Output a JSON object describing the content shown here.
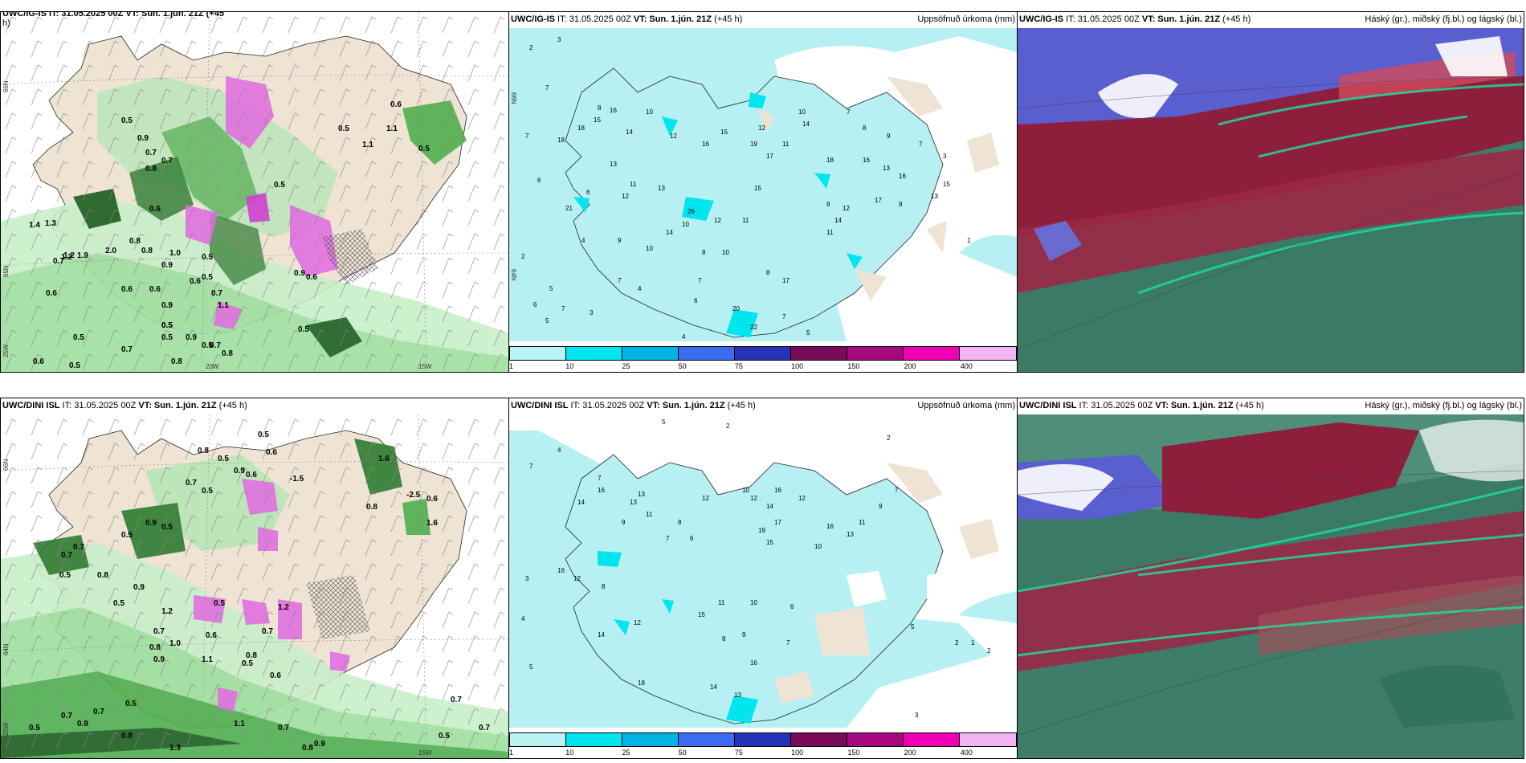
{
  "panels": {
    "top_left": {
      "title_partial": "UWC/IG-IS IT: 31.05.2025 00Z VT: Sun. 1.jún. 21Z (+45",
      "title_wrap": "h)"
    },
    "top_mid": {
      "model": "UWC/IG-IS",
      "it": " IT: 31.05.2025 00Z ",
      "vt_label": "VT: Sun. 1.jún. 21Z",
      "lead": " (+45 h)",
      "right": "Uppsöfnuð úrkoma (mm)"
    },
    "top_right": {
      "model": "UWC/IG-IS",
      "it": " IT: 31.05.2025 00Z ",
      "vt_label": "VT: Sun. 1.jún. 21Z",
      "lead": " (+45 h)",
      "right": "Háský (gr.), miðský (fj.bl.) og lágský (bl.)"
    },
    "bot_left": {
      "model": "UWC/DINI ISL",
      "it": " IT: 31.05.2025 00Z ",
      "vt_label": "VT: Sun. 1.jún. 21Z",
      "lead": " (+45 h)"
    },
    "bot_mid": {
      "model": "UWC/DINI ISL",
      "it": " IT: 31.05.2025 00Z ",
      "vt_label": "VT: Sun. 1.jún. 21Z",
      "lead": " (+45 h)",
      "right": "Uppsöfnuð úrkoma (mm)"
    },
    "bot_right": {
      "model": "UWC/DINI ISL",
      "it": " IT: 31.05.2025 00Z ",
      "vt_label": "VT: Sun. 1.jún. 21Z",
      "lead": " (+45 h)",
      "right": "Háský (gr.), miðský (fj.bl.) og lágský (bl.)"
    }
  },
  "coords": {
    "lat66": "66N",
    "lat64": "64N",
    "lat65": "65N",
    "lon20": "20W",
    "lon15": "15W",
    "lon25": "25W"
  },
  "colorbar": {
    "labels": [
      "1",
      "10",
      "25",
      "50",
      "75",
      "100",
      "150",
      "200",
      "400"
    ],
    "colors": [
      "#b8f4f4",
      "#00e5ee",
      "#00b4e6",
      "#3a6cf0",
      "#2632b8",
      "#7a0a5a",
      "#a8087e",
      "#f000b4",
      "#f2b4f2"
    ]
  },
  "precip_values": {
    "top_left": [
      "0.5",
      "0.9",
      "0.7",
      "0.6",
      "1.1",
      "0.5",
      "0.8",
      "0.5",
      "0.5",
      "1.1",
      "0.7",
      "0.6",
      "0.5",
      "0.8",
      "0.6",
      "0.5",
      "0.9",
      "1.2",
      "1.0",
      "0.6",
      "0.9",
      "0.5",
      "0.7",
      "0.5",
      "0.6",
      "1.4",
      "1.3",
      "0.7",
      "1.2",
      "1.9",
      "2.0",
      "0.6",
      "0.5",
      "0.7",
      "0.5",
      "0.6",
      "0.5",
      "0.8",
      "0.7",
      "0.9",
      "0.8",
      "0.6",
      "0.5",
      "1.1",
      "0.9",
      "0.8",
      "0.5"
    ],
    "top_mid": [
      "3",
      "2",
      "7",
      "7",
      "6",
      "8",
      "15",
      "16",
      "18",
      "10",
      "12",
      "14",
      "13",
      "11",
      "10",
      "6",
      "9",
      "13",
      "12",
      "15",
      "16",
      "18",
      "17",
      "19",
      "11",
      "10",
      "12",
      "14",
      "21",
      "7",
      "8",
      "9",
      "7",
      "3",
      "4",
      "2",
      "5",
      "6",
      "7",
      "5",
      "3",
      "4",
      "10",
      "14",
      "26",
      "17",
      "13",
      "15",
      "12",
      "16",
      "11",
      "10",
      "8",
      "9",
      "14",
      "12",
      "13",
      "15",
      "18",
      "16",
      "9",
      "11",
      "17",
      "1",
      "20",
      "22",
      "7",
      "8",
      "7",
      "4",
      "5",
      "6",
      "7"
    ],
    "bot_left": [
      "0.5",
      "0.6",
      "0.8",
      "0.5",
      "0.9",
      "0.6",
      "0.7",
      "0.5",
      "-1.5",
      "-2.5",
      "0.6",
      "1.6",
      "1.6",
      "0.7",
      "0.8",
      "0.9",
      "0.5",
      "0.7",
      "0.5",
      "0.9",
      "1.2",
      "0.5",
      "0.7",
      "0.8",
      "1.0",
      "1.1",
      "0.5",
      "0.7",
      "0.5",
      "0.9",
      "0.8",
      "1.3",
      "0.7",
      "0.6",
      "0.5",
      "0.7",
      "0.8",
      "0.9",
      "0.8",
      "0.7",
      "1.2",
      "0.6",
      "1.1",
      "0.5",
      "0.7",
      "0.7",
      "0.5",
      "0.8",
      "0.9",
      "0.5"
    ],
    "bot_mid": [
      "5",
      "2",
      "2",
      "4",
      "7",
      "7",
      "12",
      "16",
      "14",
      "13",
      "13",
      "11",
      "9",
      "7",
      "8",
      "6",
      "10",
      "12",
      "16",
      "14",
      "17",
      "12",
      "10",
      "19",
      "15",
      "16",
      "13",
      "11",
      "9",
      "7",
      "3",
      "4",
      "5",
      "12",
      "8",
      "12",
      "16",
      "14",
      "15",
      "18",
      "11",
      "9",
      "10",
      "8",
      "14",
      "13",
      "16",
      "7",
      "6",
      "5",
      "2",
      "1",
      "2",
      "3"
    ]
  },
  "ui_colors": {
    "land": "#efe3d3",
    "sea": "#ffffff",
    "precip_light": "#b6f0f2"
  }
}
